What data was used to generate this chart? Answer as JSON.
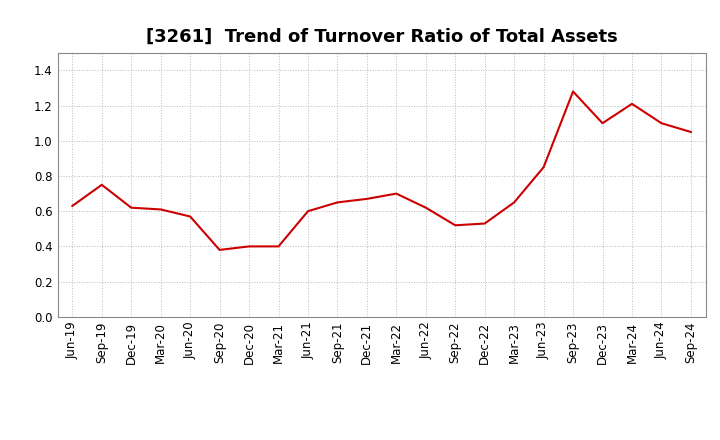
{
  "title": "[3261]  Trend of Turnover Ratio of Total Assets",
  "x_labels": [
    "Jun-19",
    "Sep-19",
    "Dec-19",
    "Mar-20",
    "Jun-20",
    "Sep-20",
    "Dec-20",
    "Mar-21",
    "Jun-21",
    "Sep-21",
    "Dec-21",
    "Mar-22",
    "Jun-22",
    "Sep-22",
    "Dec-22",
    "Mar-23",
    "Jun-23",
    "Sep-23",
    "Dec-23",
    "Mar-24",
    "Jun-24",
    "Sep-24"
  ],
  "y_values": [
    0.63,
    0.75,
    0.62,
    0.61,
    0.57,
    0.38,
    0.4,
    0.4,
    0.6,
    0.65,
    0.67,
    0.7,
    0.62,
    0.52,
    0.53,
    0.65,
    0.85,
    1.28,
    1.1,
    1.21,
    1.1,
    1.05
  ],
  "ylim": [
    0.0,
    1.5
  ],
  "yticks": [
    0.0,
    0.2,
    0.4,
    0.6,
    0.8,
    1.0,
    1.2,
    1.4
  ],
  "line_color": "#cc0000",
  "line_width": 1.5,
  "grid_color": "#bbbbbb",
  "background_color": "#ffffff",
  "plot_bg_color": "#ffffff",
  "title_fontsize": 13,
  "tick_fontsize": 8.5,
  "spine_color": "#888888"
}
